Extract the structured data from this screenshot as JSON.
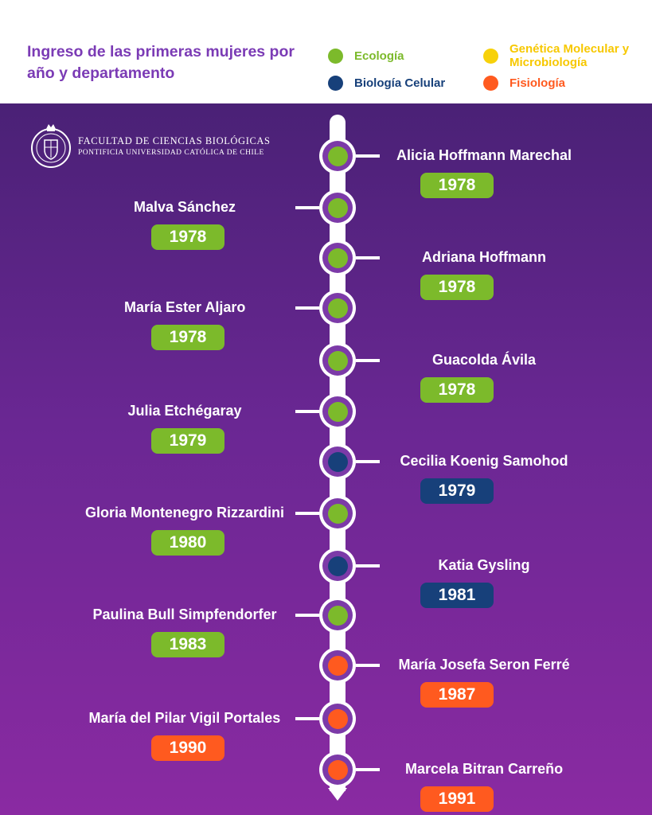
{
  "header": {
    "title": "Ingreso de las primeras mujeres por año y departamento",
    "legend": [
      {
        "label": "Ecología",
        "color": "#7cba2b"
      },
      {
        "label": "Biología Celular",
        "color": "#17407a"
      },
      {
        "label": "Genética Molecular y Microbiología",
        "color": "#f7d10a"
      },
      {
        "label": "Fisiología",
        "color": "#ff5a1f"
      }
    ]
  },
  "logo": {
    "line1": "FACULTAD DE CIENCIAS BIOLÓGICAS",
    "line2": "PONTIFICIA UNIVERSIDAD CATÓLICA DE CHILE"
  },
  "department_colors": {
    "Ecología": "#7cba2b",
    "Biología Celular": "#17407a",
    "Genética Molecular y Microbiología": "#f7d10a",
    "Fisiología": "#ff5a1f"
  },
  "timeline": [
    {
      "name": "Alicia Hoffmann Marechal",
      "year": "1978",
      "department": "Ecología",
      "side": "right"
    },
    {
      "name": "Malva Sánchez",
      "year": "1978",
      "department": "Ecología",
      "side": "left"
    },
    {
      "name": "Adriana Hoffmann",
      "year": "1978",
      "department": "Ecología",
      "side": "right"
    },
    {
      "name": "María Ester Aljaro",
      "year": "1978",
      "department": "Ecología",
      "side": "left"
    },
    {
      "name": "Guacolda Ávila",
      "year": "1978",
      "department": "Ecología",
      "side": "right"
    },
    {
      "name": "Julia Etchégaray",
      "year": "1979",
      "department": "Ecología",
      "side": "left"
    },
    {
      "name": "Cecilia Koenig Samohod",
      "year": "1979",
      "department": "Biología Celular",
      "side": "right"
    },
    {
      "name": "Gloria Montenegro Rizzardini",
      "year": "1980",
      "department": "Ecología",
      "side": "left"
    },
    {
      "name": "Katia Gysling",
      "year": "1981",
      "department": "Biología Celular",
      "side": "right"
    },
    {
      "name": "Paulina Bull Simpfendorfer",
      "year": "1983",
      "department": "Ecología",
      "side": "left"
    },
    {
      "name": "María Josefa Seron Ferré",
      "year": "1987",
      "department": "Fisiología",
      "side": "right"
    },
    {
      "name": "María del Pilar Vigil Portales",
      "year": "1990",
      "department": "Fisiología",
      "side": "left"
    },
    {
      "name": "Marcela Bitran Carreño",
      "year": "1991",
      "department": "Fisiología",
      "side": "right"
    }
  ]
}
